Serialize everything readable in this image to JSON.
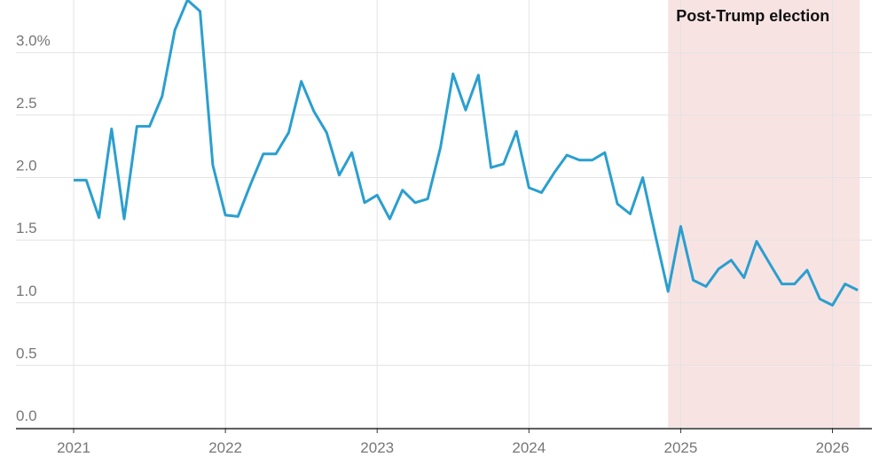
{
  "chart_data": {
    "type": "line",
    "x": [
      2021,
      2021.083,
      2021.167,
      2021.25,
      2021.333,
      2021.417,
      2021.5,
      2021.583,
      2021.667,
      2021.75,
      2021.833,
      2021.917,
      2022,
      2022.083,
      2022.167,
      2022.25,
      2022.333,
      2022.417,
      2022.5,
      2022.583,
      2022.667,
      2022.75,
      2022.833,
      2022.917,
      2023,
      2023.083,
      2023.167,
      2023.25,
      2023.333,
      2023.417,
      2023.5,
      2023.583,
      2023.667,
      2023.75,
      2023.833,
      2023.917,
      2024,
      2024.083,
      2024.167,
      2024.25,
      2024.333,
      2024.417,
      2024.5,
      2024.583,
      2024.667,
      2024.75,
      2024.833,
      2024.917,
      2025,
      2025.083,
      2025.167,
      2025.25,
      2025.333,
      2025.417,
      2025.5,
      2025.583,
      2025.667,
      2025.75,
      2025.833,
      2025.917,
      2026,
      2026.083,
      2026.167
    ],
    "series": [
      {
        "color": "#2a9fcf",
        "values": [
          1.98,
          1.98,
          1.68,
          2.39,
          1.67,
          2.41,
          2.41,
          2.65,
          3.18,
          3.42,
          3.33,
          2.1,
          1.7,
          1.69,
          1.95,
          2.19,
          2.19,
          2.36,
          2.77,
          2.53,
          2.36,
          2.02,
          2.2,
          1.8,
          1.86,
          1.67,
          1.9,
          1.8,
          1.83,
          2.24,
          2.83,
          2.54,
          2.82,
          2.08,
          2.11,
          2.37,
          1.92,
          1.88,
          2.04,
          2.18,
          2.14,
          2.14,
          2.2,
          1.79,
          1.71,
          2.0,
          1.54,
          1.09,
          1.61,
          1.18,
          1.13,
          1.27,
          1.34,
          1.2,
          1.49,
          1.32,
          1.15,
          1.15,
          1.26,
          1.03,
          0.98,
          1.15,
          1.1
        ]
      }
    ],
    "xlim": [
      2020.62,
      2026.26
    ],
    "xticks": [
      2021,
      2022,
      2023,
      2024,
      2025,
      2026
    ],
    "ylim": [
      0,
      3.42
    ],
    "yticks": [
      {
        "value": 0,
        "label": "0.0"
      },
      0.5,
      {
        "value": 1,
        "label": "1.0"
      },
      1.5,
      {
        "value": 2,
        "label": "2.0"
      },
      2.5,
      {
        "value": 3,
        "label": "3.0%"
      }
    ],
    "grid": true,
    "shade": {
      "label": "Post-Trump election",
      "from": 2024.917,
      "to": 2026.18,
      "color": "#f8e3e3"
    }
  }
}
